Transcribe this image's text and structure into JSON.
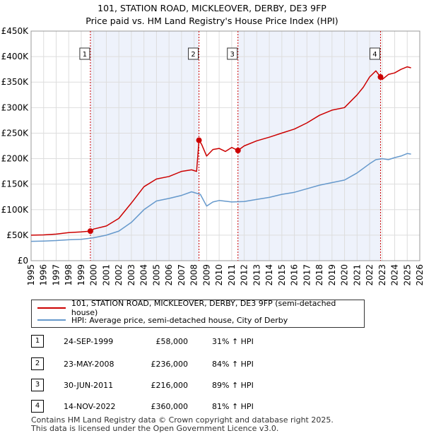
{
  "title_line1": "101, STATION ROAD, MICKLEOVER, DERBY, DE3 9FP",
  "title_line2": "Price paid vs. HM Land Registry's House Price Index (HPI)",
  "colors": {
    "property": "#cc0000",
    "hpi": "#6699cc",
    "band": "#eef2fb",
    "grid": "#dddddd",
    "vline": "#cc0000"
  },
  "chart_data": {
    "type": "line",
    "xlim": [
      1995,
      2026
    ],
    "ylim": [
      0,
      450000
    ],
    "y_ticks": [
      0,
      50000,
      100000,
      150000,
      200000,
      250000,
      300000,
      350000,
      400000,
      450000
    ],
    "y_tick_labels": [
      "£0",
      "£50K",
      "£100K",
      "£150K",
      "£200K",
      "£250K",
      "£300K",
      "£350K",
      "£400K",
      "£450K"
    ],
    "x_ticks": [
      1995,
      1996,
      1997,
      1998,
      1999,
      2000,
      2001,
      2002,
      2003,
      2004,
      2005,
      2006,
      2007,
      2008,
      2009,
      2010,
      2011,
      2012,
      2013,
      2014,
      2015,
      2016,
      2017,
      2018,
      2019,
      2020,
      2021,
      2022,
      2023,
      2024,
      2025,
      2026
    ],
    "x_tick_labels": [
      "1995",
      "1996",
      "1997",
      "1998",
      "1999",
      "2000",
      "2001",
      "2002",
      "2003",
      "2004",
      "2005",
      "2006",
      "2007",
      "2008",
      "2009",
      "2010",
      "2011",
      "2012",
      "2013",
      "2014",
      "2015",
      "2016",
      "2017",
      "2018",
      "2019",
      "2020",
      "2021",
      "2022",
      "2023",
      "2024",
      "2025",
      "2026"
    ],
    "series": [
      {
        "name": "101, STATION ROAD, MICKLEOVER, DERBY, DE3 9FP (semi-detached house)",
        "x": [
          1995,
          1996,
          1997,
          1998,
          1999,
          1999.73,
          2000,
          2001,
          2002,
          2003,
          2004,
          2005,
          2006,
          2007,
          2007.8,
          2008.2,
          2008.39,
          2008.6,
          2009,
          2009.5,
          2010,
          2010.5,
          2011,
          2011.5,
          2012,
          2013,
          2014,
          2015,
          2016,
          2017,
          2018,
          2019,
          2020,
          2021,
          2021.5,
          2022,
          2022.5,
          2022.87,
          2023,
          2023.5,
          2024,
          2024.5,
          2025,
          2025.3
        ],
        "y": [
          50000,
          50500,
          52000,
          55000,
          56500,
          58000,
          62000,
          68000,
          83000,
          113000,
          145000,
          160000,
          165000,
          175000,
          178000,
          175000,
          236000,
          228000,
          205000,
          218000,
          220000,
          214000,
          222000,
          216000,
          225000,
          235000,
          242000,
          250000,
          258000,
          270000,
          285000,
          295000,
          300000,
          325000,
          340000,
          360000,
          372000,
          360000,
          355000,
          365000,
          368000,
          375000,
          380000,
          378000
        ]
      },
      {
        "name": "HPI: Average price, semi-detached house, City of Derby",
        "x": [
          1995,
          1996,
          1997,
          1998,
          1999,
          2000,
          2001,
          2002,
          2003,
          2004,
          2005,
          2006,
          2007,
          2007.8,
          2008.5,
          2009,
          2009.5,
          2010,
          2011,
          2012,
          2013,
          2014,
          2015,
          2016,
          2017,
          2018,
          2019,
          2020,
          2021,
          2022,
          2022.5,
          2023,
          2023.5,
          2024,
          2024.5,
          2025,
          2025.3
        ],
        "y": [
          38000,
          38500,
          39500,
          41000,
          42000,
          45000,
          50000,
          58000,
          75000,
          100000,
          117000,
          122000,
          128000,
          135000,
          130000,
          107000,
          115000,
          118000,
          115000,
          116000,
          120000,
          124000,
          130000,
          134000,
          141000,
          148000,
          153000,
          158000,
          172000,
          190000,
          198000,
          200000,
          198000,
          202000,
          205000,
          210000,
          209000
        ]
      }
    ],
    "sales": [
      {
        "label": "1",
        "date": 1999.73,
        "price": 58000
      },
      {
        "label": "2",
        "date": 2008.39,
        "price": 236000
      },
      {
        "label": "3",
        "date": 2011.5,
        "price": 216000
      },
      {
        "label": "4",
        "date": 2022.87,
        "price": 360000
      }
    ],
    "shaded_bands": [
      [
        1999.73,
        2008.39
      ],
      [
        2011.5,
        2022.87
      ]
    ]
  },
  "legend": {
    "property_label": "101, STATION ROAD, MICKLEOVER, DERBY, DE3 9FP (semi-detached house)",
    "hpi_label": "HPI: Average price, semi-detached house, City of Derby"
  },
  "transactions": [
    {
      "num": "1",
      "date": "24-SEP-1999",
      "price": "£58,000",
      "hpi": "31% ↑ HPI"
    },
    {
      "num": "2",
      "date": "23-MAY-2008",
      "price": "£236,000",
      "hpi": "84% ↑ HPI"
    },
    {
      "num": "3",
      "date": "30-JUN-2011",
      "price": "£216,000",
      "hpi": "89% ↑ HPI"
    },
    {
      "num": "4",
      "date": "14-NOV-2022",
      "price": "£360,000",
      "hpi": "81% ↑ HPI"
    }
  ],
  "footer_line1": "Contains HM Land Registry data © Crown copyright and database right 2025.",
  "footer_line2": "This data is licensed under the Open Government Licence v3.0."
}
